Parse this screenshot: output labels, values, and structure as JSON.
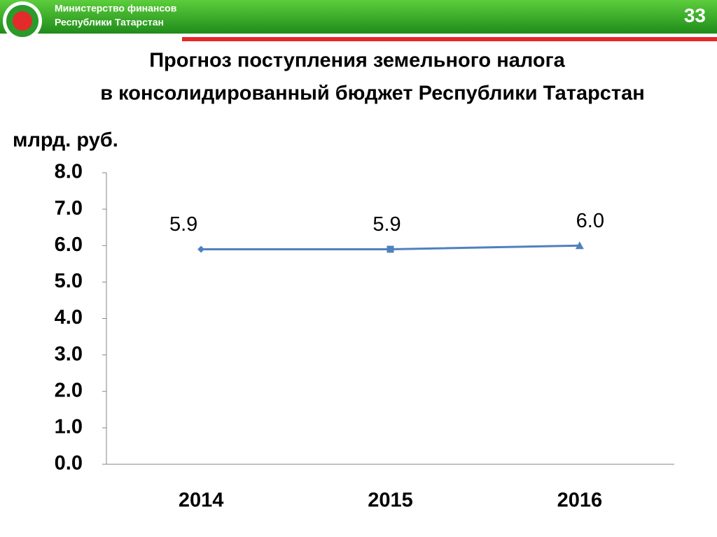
{
  "header": {
    "ministry": [
      "Министерство финансов",
      "Республики Татарстан"
    ],
    "page_number": "33"
  },
  "chart_data": {
    "type": "line",
    "title": [
      "Прогноз поступления земельного налога",
      "в консолидированный бюджет Республики Татарстан"
    ],
    "y_axis_label": "млрд. руб.",
    "categories": [
      "2014",
      "2015",
      "2016"
    ],
    "values": [
      5.9,
      5.9,
      6.0
    ],
    "value_labels": [
      "5.9",
      "5.9",
      "6.0"
    ],
    "markers": [
      "diamond",
      "square",
      "triangle"
    ],
    "color": "#4f81bd",
    "ylim": [
      0,
      8
    ],
    "yticks": [
      {
        "value": 0,
        "label": "0.0"
      },
      {
        "value": 1,
        "label": "1.0"
      },
      {
        "value": 2,
        "label": "2.0"
      },
      {
        "value": 3,
        "label": "3.0"
      },
      {
        "value": 4,
        "label": "4.0"
      },
      {
        "value": 5,
        "label": "5.0"
      },
      {
        "value": 6,
        "label": "6.0"
      },
      {
        "value": 7,
        "label": "7.0"
      },
      {
        "value": 8,
        "label": "8.0"
      }
    ],
    "grid": false
  }
}
